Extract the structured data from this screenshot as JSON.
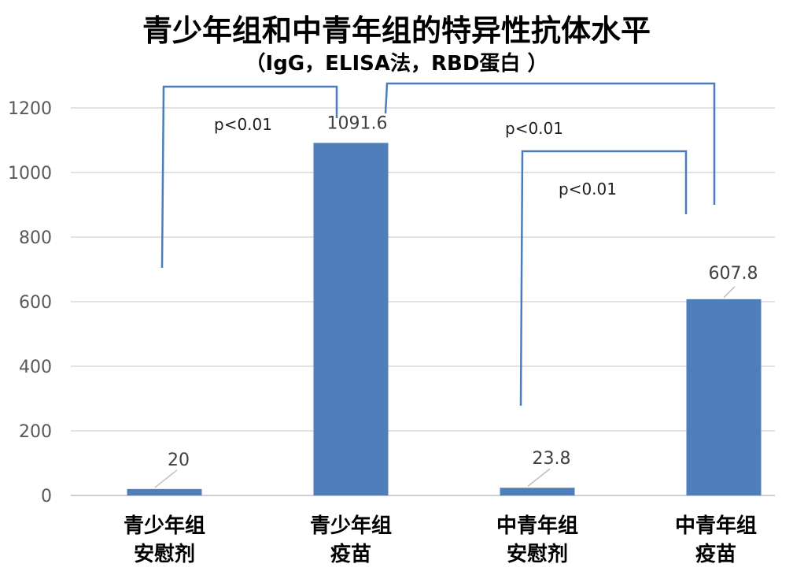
{
  "chart_data": {
    "type": "bar",
    "title": "青少年组和中青年组的特异性抗体水平",
    "subtitle": "（IgG，ELISA法，RBD蛋白 ）",
    "categories": [
      [
        "青少年组",
        "安慰剂"
      ],
      [
        "青少年组",
        "疫苗"
      ],
      [
        "中青年组",
        "安慰剂"
      ],
      [
        "中青年组",
        "疫苗"
      ]
    ],
    "values": [
      20,
      1091.6,
      23.8,
      607.8
    ],
    "value_labels": [
      "20",
      "1091.6",
      "23.8",
      "607.8"
    ],
    "ylim": [
      0,
      1200
    ],
    "yticks": [
      0,
      200,
      400,
      600,
      800,
      1000,
      1200
    ],
    "grid": true,
    "bar_color": "#4f7ebb",
    "bracket_color": "#4a7ebb",
    "annotations": [
      "p<0.01",
      "p<0.01",
      "p<0.01"
    ],
    "comparisons": [
      {
        "from": 0,
        "to": 1,
        "label": "p<0.01"
      },
      {
        "from": 1,
        "to": 3,
        "label": "p<0.01"
      },
      {
        "from": 2,
        "to": 3,
        "label": "p<0.01"
      }
    ]
  }
}
